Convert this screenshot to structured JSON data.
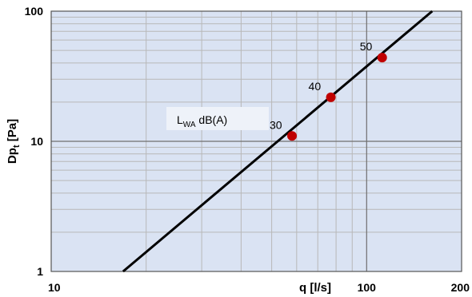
{
  "chart_data": {
    "type": "line",
    "xscale": "log",
    "yscale": "log",
    "xlim": [
      10,
      200
    ],
    "ylim": [
      1,
      100
    ],
    "x_ticks": [
      10,
      100,
      200
    ],
    "x_tick_labels": [
      "10",
      "100",
      "200"
    ],
    "y_ticks": [
      1,
      10,
      100
    ],
    "y_tick_labels": [
      "1",
      "10",
      "100"
    ],
    "xlabel": "q [l/s]",
    "ylabel_main": "Dp",
    "ylabel_sub": "t",
    "ylabel_unit": " [Pa]",
    "grid": true,
    "background": "#dae3f3",
    "gridline_color": "#b8b8b8",
    "line_color": "#000000",
    "marker_color": "#c00000",
    "legend": {
      "main": "L",
      "sub": "WA",
      "rest": " dB(A)",
      "placement": "center-left"
    },
    "line": {
      "x": [
        16.9,
        161.4
      ],
      "y": [
        1,
        100
      ]
    },
    "points": [
      {
        "x": 58,
        "y": 11,
        "label": "30"
      },
      {
        "x": 77,
        "y": 21.8,
        "label": "40"
      },
      {
        "x": 112,
        "y": 44,
        "label": "50"
      }
    ]
  }
}
